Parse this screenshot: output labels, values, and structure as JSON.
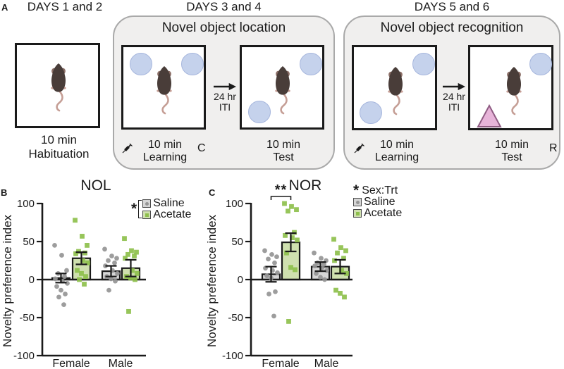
{
  "figure": {
    "panel_a_label": "A",
    "panel_b_label": "B",
    "panel_c_label": "C"
  },
  "panel_a": {
    "day_headers": [
      "DAYS 1 and 2",
      "DAYS 3 and 4",
      "DAYS 5 and 6"
    ],
    "habituation": {
      "duration": "10 min",
      "caption": "Habituation"
    },
    "nol": {
      "title": "Novel object location",
      "learning_duration": "10 min",
      "learning_caption": "Learning",
      "corner": "C",
      "iti_line1": "24 hr",
      "iti_line2": "ITI",
      "test_duration": "10 min",
      "test_caption": "Test"
    },
    "nor": {
      "title": "Novel object recognition",
      "learning_duration": "10 min",
      "learning_caption": "Learning",
      "iti_line1": "24 hr",
      "iti_line2": "ITI",
      "test_duration": "10 min",
      "test_caption": "Test",
      "corner": "R"
    }
  },
  "chart_data": [
    {
      "panel": "B",
      "type": "bar",
      "title": "NOL",
      "ylabel": "Novelty preference index",
      "ylim": [
        -100,
        100
      ],
      "yticks": [
        100,
        50,
        0,
        -50,
        -100
      ],
      "categories": [
        "Female",
        "Male"
      ],
      "legend": {
        "marker": "*",
        "bracket": true,
        "entries": [
          {
            "label": "Saline"
          },
          {
            "label": "Acetate"
          }
        ]
      },
      "groups": [
        {
          "category": "Female",
          "series": "Saline",
          "mean": 2,
          "sem": 6,
          "points": [
            45,
            32,
            12,
            8,
            4,
            1,
            -2,
            -5,
            -9,
            -14,
            -19,
            -23,
            -33
          ]
        },
        {
          "category": "Female",
          "series": "Acetate",
          "mean": 28,
          "sem": 8,
          "points": [
            78,
            57,
            45,
            37,
            35,
            34,
            25,
            22,
            12,
            8,
            4,
            0,
            -6
          ]
        },
        {
          "category": "Male",
          "series": "Saline",
          "mean": 11,
          "sem": 7,
          "points": [
            40,
            31,
            28,
            25,
            22,
            18,
            12,
            8,
            4,
            1,
            -2,
            -14
          ]
        },
        {
          "category": "Male",
          "series": "Acetate",
          "mean": 15,
          "sem": 11,
          "points": [
            54,
            38,
            36,
            33,
            31,
            28,
            12,
            8,
            4,
            2,
            0,
            -42
          ]
        }
      ],
      "significance": null
    },
    {
      "panel": "C",
      "type": "bar",
      "title": "NOR",
      "ylabel": "Novelty preference index",
      "ylim": [
        -100,
        100
      ],
      "yticks": [
        100,
        50,
        0,
        -50,
        -100
      ],
      "categories": [
        "Female",
        "Male"
      ],
      "legend": {
        "marker": "*",
        "marker_label": "Sex:Trt",
        "bracket": false,
        "entries": [
          {
            "label": "Saline"
          },
          {
            "label": "Acetate"
          }
        ]
      },
      "groups": [
        {
          "category": "Female",
          "series": "Saline",
          "mean": 7,
          "sem": 10,
          "points": [
            38,
            33,
            30,
            27,
            22,
            15,
            12,
            9,
            5,
            2,
            -16,
            -19,
            -48
          ]
        },
        {
          "category": "Female",
          "series": "Acetate",
          "mean": 49,
          "sem": 12,
          "points": [
            100,
            96,
            92,
            90,
            62,
            58,
            55,
            52,
            35,
            16,
            13,
            -55
          ]
        },
        {
          "category": "Male",
          "series": "Saline",
          "mean": 17,
          "sem": 6,
          "points": [
            35,
            28,
            25,
            22,
            20,
            18,
            15,
            12,
            8,
            3,
            0
          ]
        },
        {
          "category": "Male",
          "series": "Acetate",
          "mean": 17,
          "sem": 9,
          "points": [
            53,
            42,
            38,
            35,
            28,
            25,
            12,
            8,
            -14,
            -18,
            -23
          ]
        }
      ],
      "significance": {
        "label": "**",
        "from_group": 0,
        "to_group": 1
      }
    }
  ],
  "colors": {
    "ink": "#1a1a1a",
    "container_bg": "#f0efee",
    "container_border": "#a9a9a9",
    "arena_border": "#1a1a1a",
    "object_fill": "#c5d2ec",
    "object_stroke": "#a6b6dd",
    "triangle_fill": "#e7b4d9",
    "triangle_stroke": "#8f5c83",
    "saline_bar": "#d6d6d6",
    "saline_point": "#959595",
    "acetate_bar": "#cfe0af",
    "acetate_point": "#8ec04c",
    "mouse_body": "#493d39",
    "mouse_ear": "#8d7068",
    "mouse_tail": "#c59e95"
  }
}
